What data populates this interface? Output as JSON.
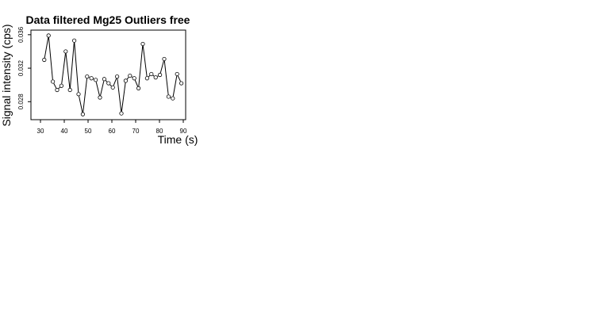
{
  "chart_data": {
    "type": "line",
    "title": "Data filtered Mg25 Outliers free",
    "xlabel": "Time (s)",
    "ylabel": "Signal intensity (cps)",
    "xlim": [
      26,
      91
    ],
    "ylim": [
      0.02585,
      0.03655
    ],
    "xticks": [
      30,
      40,
      50,
      60,
      70,
      80,
      90
    ],
    "yticks": [
      0.028,
      0.032,
      0.036
    ],
    "ytick_labels": [
      "0.028",
      "0.032",
      "0.036"
    ],
    "grid": false,
    "markers": "open-circle",
    "series": [
      {
        "x": [
          31.6,
          33.4,
          35.2,
          37.0,
          38.8,
          40.6,
          42.4,
          44.2,
          46.0,
          47.8,
          49.6,
          51.4,
          53.2,
          55.0,
          56.8,
          58.6,
          60.4,
          62.2,
          64.0,
          65.8,
          67.6,
          69.4,
          71.2,
          73.0,
          74.8,
          76.6,
          78.4,
          80.2,
          82.0,
          83.8,
          85.6,
          87.4,
          89.2
        ],
        "y": [
          0.033,
          0.0359,
          0.0304,
          0.0294,
          0.0299,
          0.034,
          0.0294,
          0.0353,
          0.0289,
          0.0265,
          0.031,
          0.0308,
          0.0306,
          0.0285,
          0.0307,
          0.0302,
          0.0297,
          0.031,
          0.0266,
          0.0305,
          0.0311,
          0.0308,
          0.0296,
          0.0349,
          0.0308,
          0.0313,
          0.0309,
          0.0312,
          0.0331,
          0.0286,
          0.0284,
          0.0313,
          0.0302
        ]
      }
    ]
  }
}
